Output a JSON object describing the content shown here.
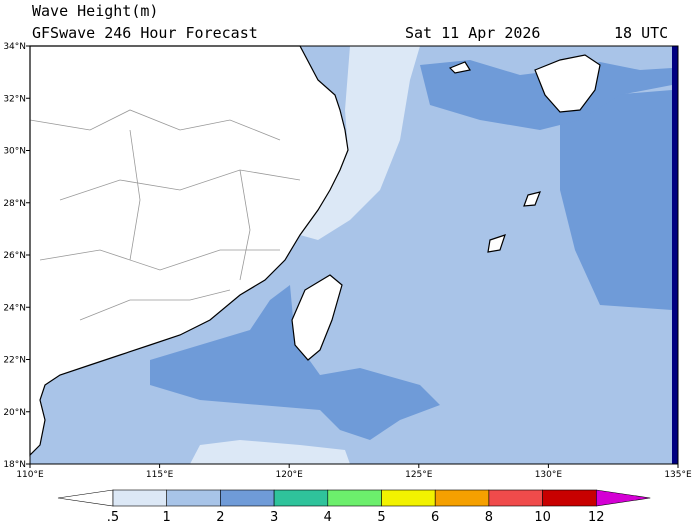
{
  "header": {
    "title": "Wave Height(m)",
    "subtitle": "GFSwave 246 Hour Forecast",
    "date": "Sat 11 Apr 2026",
    "time": "18 UTC"
  },
  "map": {
    "lat_labels": [
      "34°N",
      "32°N",
      "30°N",
      "28°N",
      "26°N",
      "24°N",
      "22°N",
      "20°N",
      "18°N"
    ],
    "lon_labels": [
      "110°E",
      "115°E",
      "120°E",
      "125°E",
      "130°E",
      "135°E"
    ]
  },
  "colorbar": {
    "labels": [
      ".5",
      "1",
      "2",
      "3",
      "4",
      "5",
      "6",
      "8",
      "10",
      "12"
    ],
    "colors": [
      "#ffffff",
      "#dce8f6",
      "#a8c4e8",
      "#6f9bd8",
      "#2fc39b",
      "#6cef6c",
      "#f2f200",
      "#f5a000",
      "#f04b4b",
      "#c80000",
      "#d400d4"
    ]
  }
}
